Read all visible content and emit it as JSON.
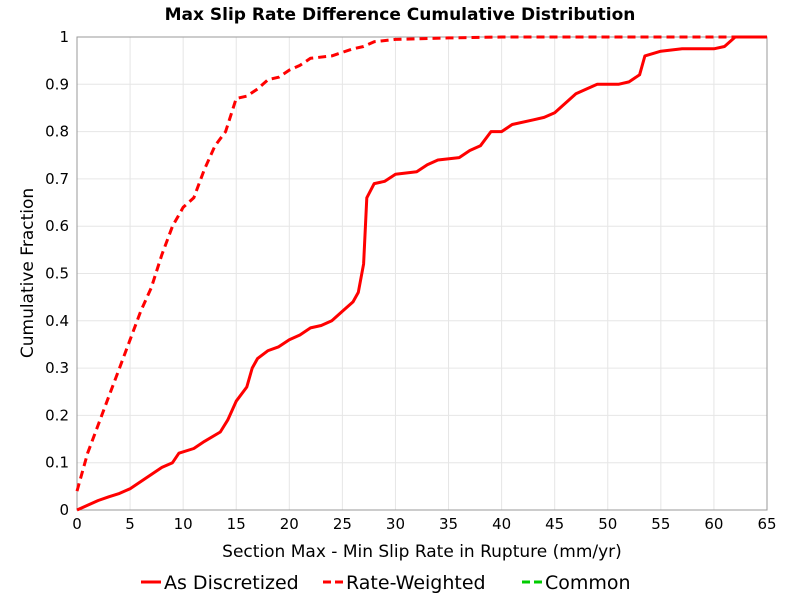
{
  "chart_data": {
    "type": "line",
    "title": "Max Slip Rate Difference Cumulative Distribution",
    "xlabel": "Section Max - Min Slip Rate in Rupture (mm/yr)",
    "ylabel": "Cumulative Fraction",
    "xlim": [
      0,
      65
    ],
    "ylim": [
      0,
      1
    ],
    "xticks": [
      0,
      5,
      10,
      15,
      20,
      25,
      30,
      35,
      40,
      45,
      50,
      55,
      60,
      65
    ],
    "yticks": [
      0,
      0.1,
      0.2,
      0.3,
      0.4,
      0.5,
      0.6,
      0.7,
      0.8,
      0.9,
      1
    ],
    "grid": true,
    "legend_position": "bottom",
    "series": [
      {
        "name": "As Discretized",
        "color": "#ff0000",
        "style": "solid",
        "points": [
          [
            0,
            0
          ],
          [
            1,
            0.01
          ],
          [
            2,
            0.02
          ],
          [
            3,
            0.028
          ],
          [
            4,
            0.035
          ],
          [
            5,
            0.045
          ],
          [
            6,
            0.06
          ],
          [
            7,
            0.075
          ],
          [
            8,
            0.09
          ],
          [
            9,
            0.1
          ],
          [
            9.6,
            0.12
          ],
          [
            11,
            0.13
          ],
          [
            12,
            0.145
          ],
          [
            13.5,
            0.165
          ],
          [
            14.2,
            0.19
          ],
          [
            15,
            0.23
          ],
          [
            16,
            0.26
          ],
          [
            16.5,
            0.3
          ],
          [
            17,
            0.32
          ],
          [
            18,
            0.337
          ],
          [
            19,
            0.345
          ],
          [
            20,
            0.36
          ],
          [
            21,
            0.37
          ],
          [
            22,
            0.385
          ],
          [
            23,
            0.39
          ],
          [
            24,
            0.4
          ],
          [
            25,
            0.42
          ],
          [
            26,
            0.44
          ],
          [
            26.5,
            0.46
          ],
          [
            27,
            0.52
          ],
          [
            27.3,
            0.66
          ],
          [
            28,
            0.69
          ],
          [
            29,
            0.695
          ],
          [
            30,
            0.71
          ],
          [
            32,
            0.715
          ],
          [
            33,
            0.73
          ],
          [
            34,
            0.74
          ],
          [
            36,
            0.745
          ],
          [
            37,
            0.76
          ],
          [
            38,
            0.77
          ],
          [
            39,
            0.8
          ],
          [
            40,
            0.8
          ],
          [
            41,
            0.815
          ],
          [
            43,
            0.825
          ],
          [
            44,
            0.83
          ],
          [
            45,
            0.84
          ],
          [
            46,
            0.86
          ],
          [
            47,
            0.88
          ],
          [
            48,
            0.89
          ],
          [
            49,
            0.9
          ],
          [
            51,
            0.9
          ],
          [
            52,
            0.905
          ],
          [
            53,
            0.92
          ],
          [
            53.5,
            0.96
          ],
          [
            55,
            0.97
          ],
          [
            57,
            0.975
          ],
          [
            60,
            0.975
          ],
          [
            61,
            0.98
          ],
          [
            62,
            1.0
          ],
          [
            65,
            1.0
          ]
        ]
      },
      {
        "name": "Rate-Weighted",
        "color": "#ff0000",
        "style": "dashed",
        "points": [
          [
            0,
            0.04
          ],
          [
            1,
            0.12
          ],
          [
            2,
            0.18
          ],
          [
            3,
            0.24
          ],
          [
            4,
            0.3
          ],
          [
            5,
            0.36
          ],
          [
            6,
            0.42
          ],
          [
            7,
            0.47
          ],
          [
            8,
            0.54
          ],
          [
            9,
            0.6
          ],
          [
            10,
            0.64
          ],
          [
            11,
            0.66
          ],
          [
            12,
            0.72
          ],
          [
            13,
            0.77
          ],
          [
            14,
            0.8
          ],
          [
            15,
            0.87
          ],
          [
            16,
            0.875
          ],
          [
            17,
            0.89
          ],
          [
            18,
            0.91
          ],
          [
            19,
            0.915
          ],
          [
            20,
            0.93
          ],
          [
            21,
            0.94
          ],
          [
            22,
            0.955
          ],
          [
            24,
            0.96
          ],
          [
            26,
            0.975
          ],
          [
            27,
            0.98
          ],
          [
            28,
            0.99
          ],
          [
            30,
            0.995
          ],
          [
            35,
            0.998
          ],
          [
            40,
            1.0
          ],
          [
            65,
            1.0
          ]
        ]
      },
      {
        "name": "Common",
        "color": "#00cc00",
        "style": "dashed",
        "points": []
      }
    ]
  }
}
